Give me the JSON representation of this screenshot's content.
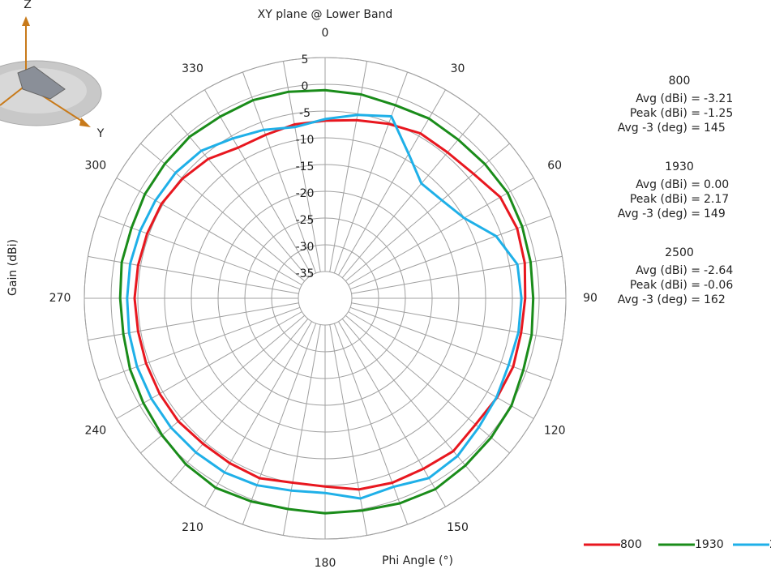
{
  "chart_data": {
    "type": "polar",
    "title": "XY plane @ Lower Band",
    "x_label": "Phi  Angle (°)",
    "y_label": "Gain (dBi)",
    "theta": [
      0,
      10,
      20,
      30,
      40,
      50,
      60,
      70,
      80,
      90,
      100,
      110,
      120,
      130,
      140,
      150,
      160,
      170,
      180,
      190,
      200,
      210,
      220,
      230,
      240,
      250,
      260,
      270,
      280,
      290,
      300,
      310,
      320,
      330,
      340,
      350
    ],
    "thetaticks": [
      0,
      30,
      60,
      90,
      120,
      150,
      180,
      210,
      240,
      270,
      300,
      330
    ],
    "rlim": [
      -40,
      5
    ],
    "rticks": [
      -35,
      -30,
      -25,
      -20,
      -15,
      -10,
      -5,
      0,
      5
    ],
    "legend": "bottom-right",
    "series": [
      {
        "name": "800",
        "color": "#e8171f",
        "values": [
          -6.8,
          -6.2,
          -5.3,
          -4.4,
          -4.4,
          -3.8,
          -2.2,
          -1.8,
          -2.1,
          -2.6,
          -2.8,
          -2.6,
          -2.9,
          -3.3,
          -2.7,
          -3.2,
          -3.3,
          -3.7,
          -4.8,
          -5.0,
          -4.2,
          -4.4,
          -4.5,
          -4.2,
          -4.3,
          -4.4,
          -4.5,
          -4.4,
          -4.5,
          -4.6,
          -4.7,
          -5.2,
          -6.0,
          -7.5,
          -7.5,
          -7.0
        ]
      },
      {
        "name": "1930",
        "color": "#1a8c1a",
        "values": [
          -1.1,
          -1.3,
          -1.6,
          -1.2,
          -1.3,
          -1.0,
          -0.6,
          -0.8,
          -1.0,
          -1.1,
          -0.8,
          -0.6,
          0.2,
          0.5,
          0.8,
          1.2,
          0.8,
          0.3,
          0.2,
          0.0,
          0.4,
          0.9,
          0.5,
          -0.2,
          -0.8,
          -1.2,
          -1.7,
          -1.7,
          -1.4,
          -1.5,
          -1.1,
          -0.9,
          -0.6,
          -0.8,
          -0.6,
          -0.8
        ]
      },
      {
        "name": "2500",
        "color": "#1fb0e8",
        "values": [
          -6.5,
          -5.2,
          -3.8,
          -8.8,
          -12.0,
          -11.5,
          -10.0,
          -6.0,
          -3.5,
          -3.3,
          -3.3,
          -3.5,
          -3.0,
          -2.5,
          -1.5,
          -1.2,
          -2.5,
          -2.0,
          -3.6,
          -3.5,
          -2.8,
          -2.4,
          -2.4,
          -2.4,
          -2.5,
          -2.6,
          -2.8,
          -3.0,
          -3.0,
          -3.2,
          -3.4,
          -3.5,
          -4.0,
          -5.5,
          -6.5,
          -7.5
        ]
      }
    ],
    "annotations": [
      {
        "name": "800",
        "rows": [
          {
            "label": "Avg (dBi) =",
            "value": "-3.21"
          },
          {
            "label": "Peak (dBi) =",
            "value": "-1.25"
          },
          {
            "label": "Avg -3 (deg) =",
            "value": "145"
          }
        ]
      },
      {
        "name": "1930",
        "rows": [
          {
            "label": "Avg (dBi) =",
            "value": "0.00"
          },
          {
            "label": "Peak (dBi) =",
            "value": "2.17"
          },
          {
            "label": "Avg -3 (deg) =",
            "value": "149"
          }
        ]
      },
      {
        "name": "2500",
        "rows": [
          {
            "label": "Avg (dBi) =",
            "value": "-2.64"
          },
          {
            "label": "Peak (dBi) =",
            "value": "-0.06"
          },
          {
            "label": "Avg -3 (deg) =",
            "value": "162"
          }
        ]
      }
    ]
  },
  "orientation_icon": {
    "z": "Z",
    "y": "Y"
  }
}
